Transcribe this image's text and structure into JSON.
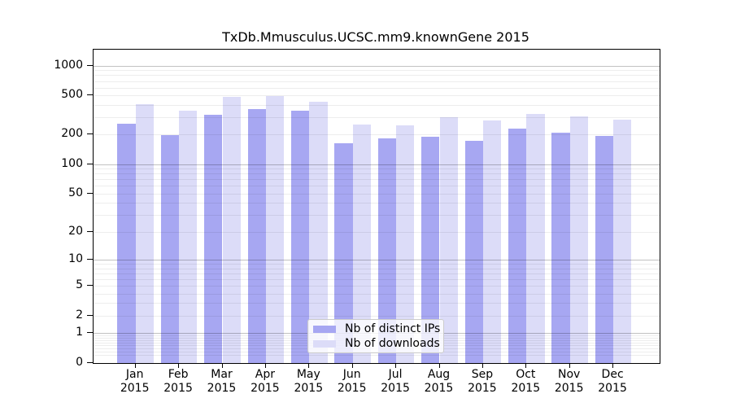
{
  "chart_data": {
    "type": "bar",
    "title": "TxDb.Mmusculus.UCSC.mm9.knownGene 2015",
    "categories": [
      "Jan",
      "Feb",
      "Mar",
      "Apr",
      "May",
      "Jun",
      "Jul",
      "Aug",
      "Sep",
      "Oct",
      "Nov",
      "Dec"
    ],
    "year": "2015",
    "series": [
      {
        "name": "Nb of distinct IPs",
        "color": "#a7a7f2",
        "values": [
          260,
          200,
          319,
          368,
          351,
          165,
          187,
          192,
          176,
          231,
          211,
          196
        ]
      },
      {
        "name": "Nb of downloads",
        "color": "#dcdcf8",
        "values": [
          410,
          353,
          489,
          496,
          437,
          257,
          252,
          305,
          280,
          328,
          309,
          286
        ]
      }
    ],
    "yscale": "log1p",
    "ylim": [
      0,
      1460
    ],
    "yticks": [
      1000,
      500,
      200,
      100,
      50,
      20,
      10,
      5,
      2,
      1,
      0
    ],
    "grid": "horizontal",
    "grid_major": [
      1,
      10,
      100,
      1000
    ],
    "legend_position": "inside-bottom-center"
  },
  "colors": {
    "axis": "#000000",
    "grid_major": "rgba(0,0,0,0.24)",
    "grid_minor": "rgba(0,0,0,0.07)",
    "legend_border": "#cccccc"
  }
}
